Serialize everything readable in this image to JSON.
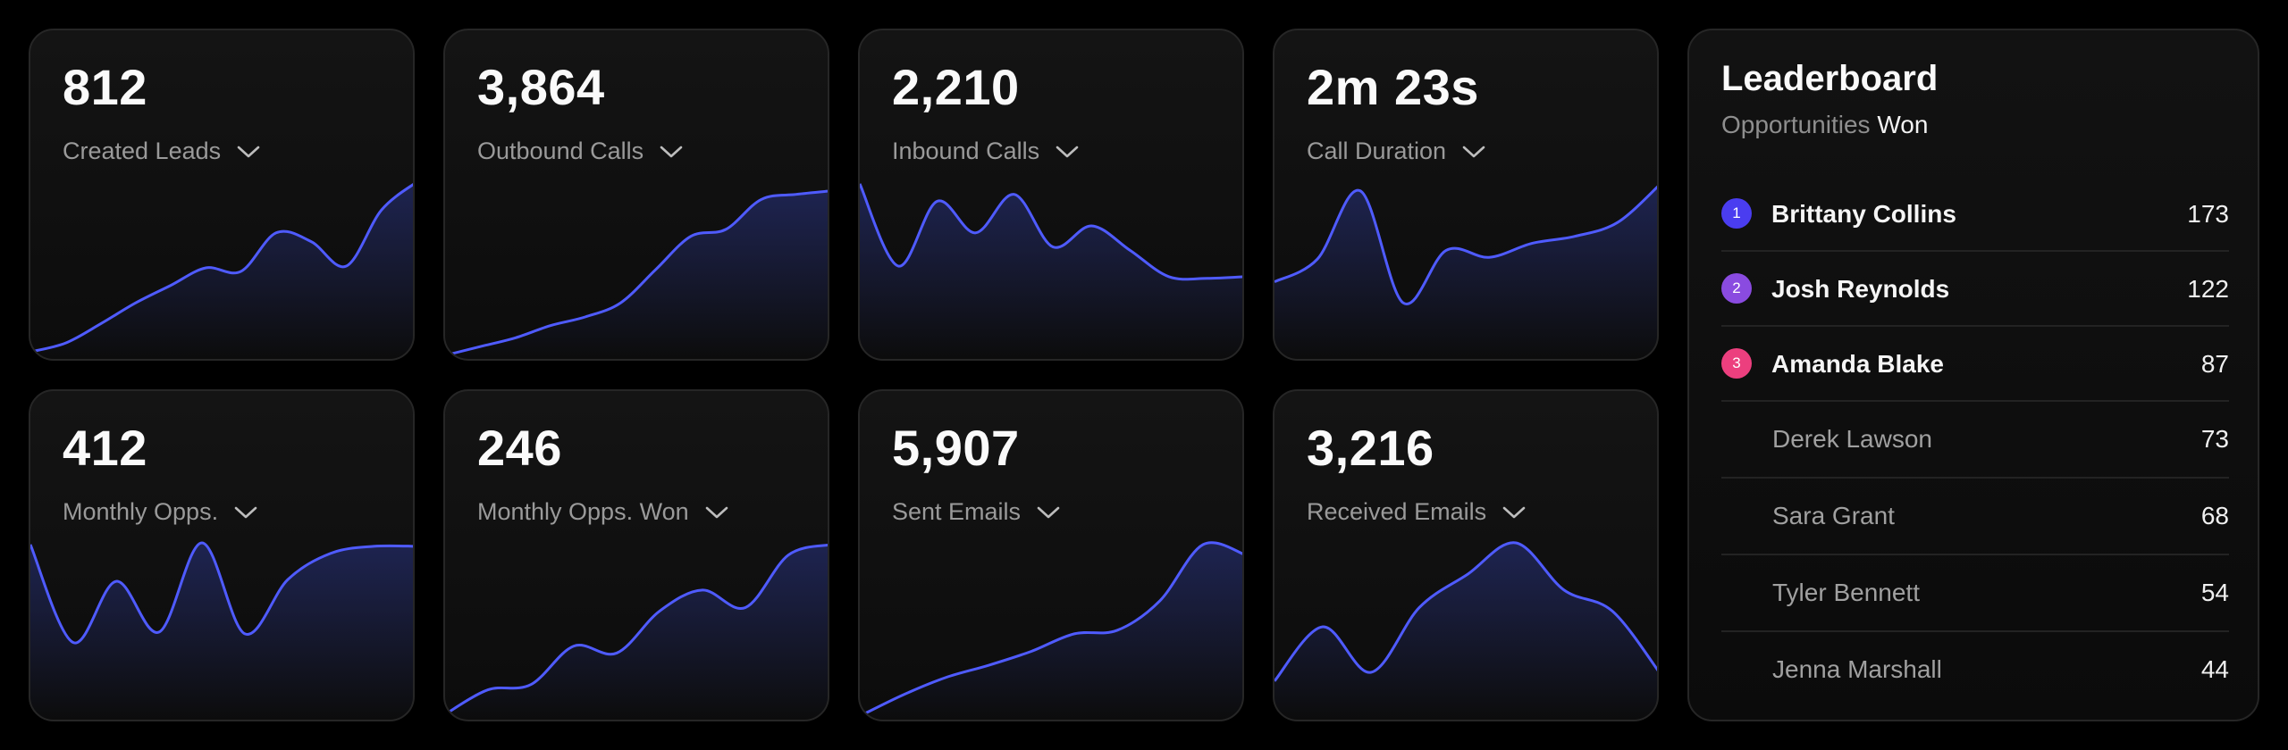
{
  "colors": {
    "line": "#4f5bff",
    "area_top": "#222a66",
    "rank1": "#4a3df0",
    "rank2": "#8a4be0",
    "rank3": "#ec3f7e"
  },
  "metrics": [
    {
      "value": "812",
      "label": "Created Leads",
      "curve": [
        0.98,
        0.93,
        0.82,
        0.7,
        0.6,
        0.5,
        0.52,
        0.3,
        0.35,
        0.49,
        0.17,
        0.01
      ]
    },
    {
      "value": "3,864",
      "label": "Outbound Calls",
      "curve": [
        1.0,
        0.95,
        0.9,
        0.83,
        0.78,
        0.7,
        0.51,
        0.32,
        0.28,
        0.11,
        0.08,
        0.06
      ]
    },
    {
      "value": "2,210",
      "label": "Inbound Calls",
      "curve": [
        0.02,
        0.49,
        0.12,
        0.3,
        0.08,
        0.38,
        0.26,
        0.4,
        0.55,
        0.56,
        0.55
      ]
    },
    {
      "value": "2m 23s",
      "label": "Call Duration",
      "curve": [
        0.58,
        0.45,
        0.06,
        0.7,
        0.4,
        0.44,
        0.36,
        0.32,
        0.24,
        0.02
      ]
    },
    {
      "value": "412",
      "label": "Monthly Opps.",
      "curve": [
        0.02,
        0.58,
        0.23,
        0.52,
        0.01,
        0.53,
        0.22,
        0.07,
        0.03,
        0.03
      ]
    },
    {
      "value": "246",
      "label": "Monthly Opps. Won",
      "curve": [
        0.99,
        0.85,
        0.82,
        0.6,
        0.64,
        0.4,
        0.28,
        0.38,
        0.08,
        0.02
      ]
    },
    {
      "value": "5,907",
      "label": "Sent Emails",
      "curve": [
        1.0,
        0.88,
        0.78,
        0.71,
        0.63,
        0.53,
        0.51,
        0.34,
        0.02,
        0.08
      ]
    },
    {
      "value": "3,216",
      "label": "Received Emails",
      "curve": [
        0.8,
        0.49,
        0.75,
        0.38,
        0.19,
        0.01,
        0.28,
        0.4,
        0.76
      ]
    }
  ],
  "leaderboard": {
    "title": "Leaderboard",
    "subtitle_muted": "Opportunities",
    "subtitle_strong": "Won",
    "rows": [
      {
        "rank": "1",
        "name": "Brittany Collins",
        "value": "173",
        "color": "#4a3df0"
      },
      {
        "rank": "2",
        "name": "Josh Reynolds",
        "value": "122",
        "color": "#8a4be0"
      },
      {
        "rank": "3",
        "name": "Amanda Blake",
        "value": "87",
        "color": "#ec3f7e"
      },
      {
        "rank": "",
        "name": "Derek Lawson",
        "value": "73",
        "color": ""
      },
      {
        "rank": "",
        "name": "Sara Grant",
        "value": "68",
        "color": ""
      },
      {
        "rank": "",
        "name": "Tyler Bennett",
        "value": "54",
        "color": ""
      },
      {
        "rank": "",
        "name": "Jenna Marshall",
        "value": "44",
        "color": ""
      }
    ]
  }
}
